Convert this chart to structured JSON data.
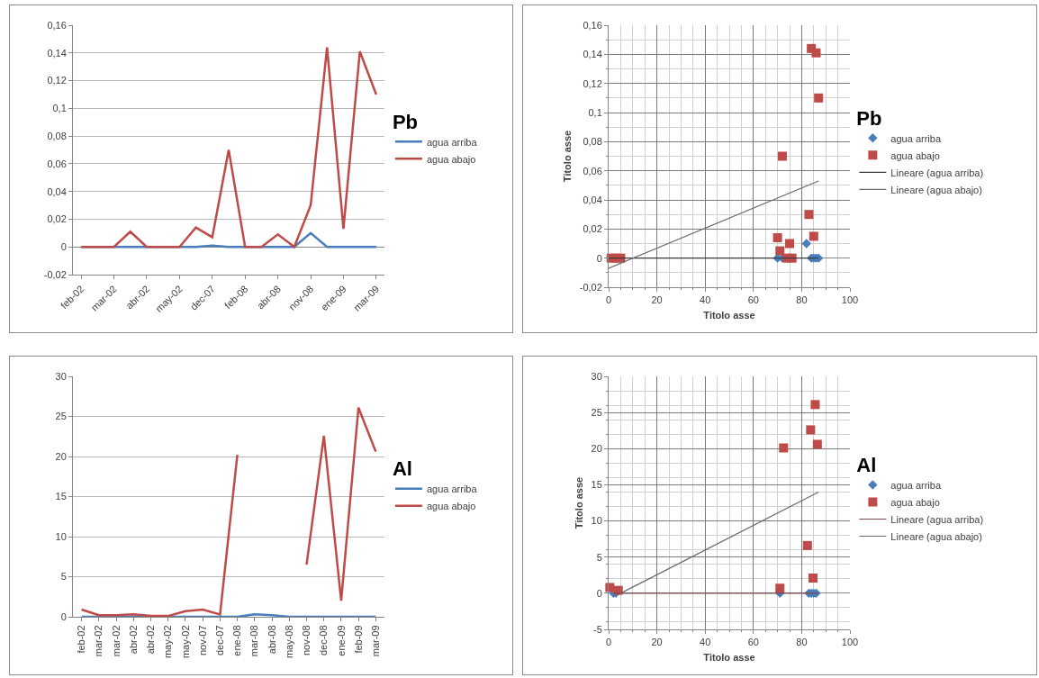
{
  "chart_data": [
    {
      "type": "line",
      "legend_title": "Pb",
      "categories": [
        "feb-02",
        null,
        "mar-02",
        null,
        "abr-02",
        null,
        "may-02",
        null,
        "dec-07",
        null,
        "feb-08",
        null,
        "abr-08",
        null,
        "nov-08",
        null,
        "ene-09",
        null,
        "mar-09"
      ],
      "series": [
        {
          "name": "agua arriba",
          "color": "#4a7ebb",
          "values": [
            0,
            0,
            0,
            0,
            0,
            0,
            0,
            0,
            0.001,
            0,
            0,
            0,
            0,
            0,
            0.01,
            0,
            0,
            0,
            0
          ]
        },
        {
          "name": "agua abajo",
          "color": "#be4b48",
          "values": [
            0,
            0,
            0,
            0.011,
            0,
            0,
            0,
            0.014,
            0.007,
            0.07,
            0,
            0,
            0.009,
            0,
            0.03,
            0.144,
            0.013,
            0.141,
            0.11
          ]
        }
      ],
      "ylim": [
        -0.02,
        0.16
      ],
      "yticks": [
        {
          "value": -0.02,
          "label": "-0,02"
        },
        0,
        {
          "value": 0.02,
          "label": "0,02"
        },
        {
          "value": 0.04,
          "label": "0,04"
        },
        {
          "value": 0.06,
          "label": "0,06"
        },
        {
          "value": 0.08,
          "label": "0,08"
        },
        {
          "value": 0.1,
          "label": "0,1"
        },
        {
          "value": 0.12,
          "label": "0,12"
        },
        {
          "value": 0.14,
          "label": "0,14"
        },
        {
          "value": 0.16,
          "label": "0,16"
        }
      ],
      "grid": "y",
      "legend": "right"
    },
    {
      "type": "scatter",
      "legend_title": "Pb",
      "xlabel": "Titolo asse",
      "ylabel": "Titolo asse",
      "series": [
        {
          "name": "agua arriba",
          "color": "#4a7ebb",
          "marker": "diamond",
          "x": [
            70,
            72,
            82,
            84,
            85,
            86,
            87
          ],
          "values": [
            0,
            0,
            0.01,
            0,
            0,
            0,
            0
          ]
        },
        {
          "name": "agua abajo",
          "color": "#be4b48",
          "marker": "square",
          "x": [
            1,
            3,
            5,
            70,
            71,
            72,
            75,
            74,
            76,
            83,
            84,
            85,
            86,
            87
          ],
          "values": [
            0,
            0,
            0,
            0.014,
            0.005,
            0.07,
            0.01,
            0,
            0,
            0.03,
            0.144,
            0.015,
            0.141,
            0.11
          ]
        },
        {
          "type": "line",
          "name": "Lineare (agua arriba)",
          "color": "#3a3a3a",
          "x": [
            0,
            87
          ],
          "values": [
            0,
            0
          ]
        },
        {
          "type": "line",
          "name": "Lineare (agua abajo)",
          "color": "#6a6a6a",
          "x": [
            0,
            87
          ],
          "values": [
            -0.007,
            0.053
          ]
        }
      ],
      "xlim": [
        0,
        100
      ],
      "xticks": [
        0,
        20,
        40,
        60,
        80,
        100
      ],
      "ylim": [
        -0.02,
        0.16
      ],
      "yticks": [
        {
          "value": -0.02,
          "label": "-0,02"
        },
        0,
        {
          "value": 0.02,
          "label": "0,02"
        },
        {
          "value": 0.04,
          "label": "0,04"
        },
        {
          "value": 0.06,
          "label": "0,06"
        },
        {
          "value": 0.08,
          "label": "0,08"
        },
        {
          "value": 0.1,
          "label": "0,1"
        },
        {
          "value": 0.12,
          "label": "0,12"
        },
        {
          "value": 0.14,
          "label": "0,14"
        },
        {
          "value": 0.16,
          "label": "0,16"
        }
      ],
      "grid": true,
      "legend": "right"
    },
    {
      "type": "line",
      "legend_title": "Al",
      "categories": [
        "feb-02",
        "mar-02",
        "mar-02",
        "abr-02",
        "abr-02",
        "may-02",
        "may-02",
        "nov-07",
        "dec-07",
        "ene-08",
        "mar-08",
        "abr-08",
        "may-08",
        "nov-08",
        "dec-08",
        "ene-09",
        "feb-09",
        "mar-09"
      ],
      "series": [
        {
          "name": "agua arriba",
          "color": "#4a7ebb",
          "values": [
            0,
            0,
            0,
            0,
            0,
            0,
            0,
            0,
            0,
            0,
            0.3,
            0.2,
            0,
            0,
            0,
            0,
            0,
            0
          ]
        },
        {
          "name": "agua abajo",
          "color": "#be4b48",
          "values": [
            0.9,
            0.2,
            0.2,
            0.3,
            0.1,
            0.1,
            0.7,
            0.9,
            0.3,
            20.2,
            null,
            null,
            null,
            6.5,
            22.6,
            2,
            26.1,
            20.6
          ]
        }
      ],
      "ylim": [
        0,
        30
      ],
      "yticks": [
        0,
        5,
        10,
        15,
        20,
        25,
        30
      ],
      "grid": "y",
      "legend": "right"
    },
    {
      "type": "scatter",
      "legend_title": "Al",
      "xlabel": "Titolo asse",
      "ylabel": "Titolo asse",
      "series": [
        {
          "name": "agua arriba",
          "color": "#4a7ebb",
          "marker": "diamond",
          "x": [
            2,
            3,
            71,
            83,
            84,
            85,
            86
          ],
          "values": [
            0,
            0,
            0,
            0,
            0,
            0,
            0
          ]
        },
        {
          "name": "agua abajo",
          "color": "#be4b48",
          "marker": "square",
          "x": [
            0.5,
            4,
            71,
            72.5,
            82.4,
            83.7,
            84.7,
            85.6,
            86.5
          ],
          "values": [
            0.8,
            0.4,
            0.7,
            20.1,
            6.6,
            22.6,
            2.1,
            26.1,
            20.6
          ]
        },
        {
          "type": "line",
          "name": "Lineare (agua arriba)",
          "color": "#7a4a4a",
          "x": [
            2,
            87
          ],
          "values": [
            0,
            0
          ]
        },
        {
          "type": "line",
          "name": "Lineare (agua abajo)",
          "color": "#6a6a6a",
          "x": [
            5,
            87
          ],
          "values": [
            0,
            14
          ]
        }
      ],
      "xlim": [
        0,
        100
      ],
      "xticks": [
        0,
        20,
        40,
        60,
        80,
        100
      ],
      "ylim": [
        -5,
        30
      ],
      "yticks": [
        -5,
        0,
        5,
        10,
        15,
        20,
        25,
        30
      ],
      "grid": true,
      "legend": "right"
    }
  ]
}
